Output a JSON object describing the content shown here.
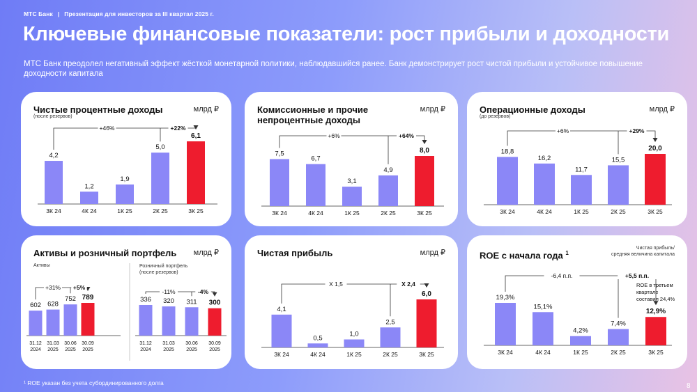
{
  "header": {
    "brand": "МТС Банк",
    "separator": "|",
    "context": "Презентация для инвесторов за III квартал 2025 г."
  },
  "title": "Ключевые финансовые показатели: рост прибыли и доходности",
  "subtitle": "МТС Банк преодолел негативный эффект жёсткой монетарной политики, наблюдавшийся ранее. Банк демонстрирует рост чистой прибыли и устойчивое повышение доходности капитала",
  "footnote": "¹ ROE указан без учета субординированного долга",
  "page_number": "8",
  "colors": {
    "bar": "#8b87f7",
    "highlight": "#ee1c2e",
    "background_start": "#6f7cf6",
    "background_end": "#e9c2e4"
  },
  "cards": {
    "nii": {
      "title": "Чистые процентные доходы",
      "sub": "(после резервов)",
      "unit": "млрд ₽"
    },
    "fee": {
      "title_line1": "Комиссионные и прочие",
      "title_line2": "непроцентные доходы",
      "unit": "млрд ₽"
    },
    "opinc": {
      "title": "Операционные доходы",
      "sub": "(до резервов)",
      "unit": "млрд ₽"
    },
    "assets": {
      "title": "Активы и розничный портфель",
      "unit": "млрд ₽",
      "left_label": "Активы",
      "right_label_line1": "Розничный портфель",
      "right_label_line2": "(после резервов)"
    },
    "profit": {
      "title": "Чистая прибыль",
      "unit": "млрд ₽"
    },
    "roe": {
      "title": "ROE с начала года",
      "sup": "1",
      "unit_line1": "Чистая прибыль/",
      "unit_line2": "средняя величина капитала",
      "note_line1": "ROE в третьем",
      "note_line2": "квартале",
      "note_line3": "составил 24,4%"
    }
  },
  "chart_data": [
    {
      "id": "nii",
      "type": "bar",
      "title": "Чистые процентные доходы",
      "categories": [
        "3К 24",
        "4К 24",
        "1К 25",
        "2К 25",
        "3К 25"
      ],
      "values": [
        4.2,
        1.2,
        1.9,
        5.0,
        6.1
      ],
      "labels": [
        "4,2",
        "1,2",
        "1,9",
        "5,0",
        "6,1"
      ],
      "highlight_index": 4,
      "ylim": [
        0,
        6.1
      ],
      "annotations": {
        "long": "+46%",
        "short": "+22%"
      }
    },
    {
      "id": "fee",
      "type": "bar",
      "title": "Комиссионные и прочие непроцентные доходы",
      "categories": [
        "3К 24",
        "4К 24",
        "1К 25",
        "2К 25",
        "3К 25"
      ],
      "values": [
        7.5,
        6.7,
        3.1,
        4.9,
        8.0
      ],
      "labels": [
        "7,5",
        "6,7",
        "3,1",
        "4,9",
        "8,0"
      ],
      "highlight_index": 4,
      "ylim": [
        0,
        8.0
      ],
      "annotations": {
        "long": "+6%",
        "short": "+64%"
      }
    },
    {
      "id": "opinc",
      "type": "bar",
      "title": "Операционные доходы",
      "categories": [
        "3К 24",
        "4К 24",
        "1К 25",
        "2К 25",
        "3К 25"
      ],
      "values": [
        18.8,
        16.2,
        11.7,
        15.5,
        20.0
      ],
      "labels": [
        "18,8",
        "16,2",
        "11,7",
        "15,5",
        "20,0"
      ],
      "highlight_index": 4,
      "ylim": [
        0,
        20.0
      ],
      "annotations": {
        "long": "+6%",
        "short": "+29%"
      }
    },
    {
      "id": "assets",
      "type": "bar",
      "title": "Активы",
      "categories": [
        "31.12\n2024",
        "31.03\n2025",
        "30.06\n2025",
        "30.09\n2025"
      ],
      "values": [
        602,
        628,
        752,
        789
      ],
      "labels": [
        "602",
        "628",
        "752",
        "789"
      ],
      "highlight_index": 3,
      "ylim": [
        0,
        789
      ],
      "annotations": {
        "long": "+31%",
        "short": "+5%"
      }
    },
    {
      "id": "retail",
      "type": "bar",
      "title": "Розничный портфель",
      "categories": [
        "31.12\n2024",
        "31.03\n2025",
        "30.06\n2025",
        "30.09\n2025"
      ],
      "values": [
        336,
        320,
        311,
        300
      ],
      "labels": [
        "336",
        "320",
        "311",
        "300"
      ],
      "highlight_index": 3,
      "ylim": [
        0,
        336
      ],
      "annotations": {
        "long": "-11%",
        "short": "-4%"
      }
    },
    {
      "id": "profit",
      "type": "bar",
      "title": "Чистая прибыль",
      "categories": [
        "3К 24",
        "4К 24",
        "1К 25",
        "2К 25",
        "3К 25"
      ],
      "values": [
        4.1,
        0.5,
        1.0,
        2.5,
        6.0
      ],
      "labels": [
        "4,1",
        "0,5",
        "1,0",
        "2,5",
        "6,0"
      ],
      "highlight_index": 4,
      "ylim": [
        0,
        6.0
      ],
      "annotations": {
        "long": "X 1,5",
        "short": "X 2,4"
      }
    },
    {
      "id": "roe",
      "type": "bar",
      "title": "ROE с начала года",
      "categories": [
        "3К 24",
        "4К 24",
        "1К 25",
        "2К 25",
        "3К 25"
      ],
      "values": [
        19.3,
        15.1,
        4.2,
        7.4,
        12.9
      ],
      "labels": [
        "19,3%",
        "15,1%",
        "4,2%",
        "7,4%",
        "12,9%"
      ],
      "highlight_index": 4,
      "ylim": [
        0,
        19.3
      ],
      "annotations": {
        "long": "-6,4 п.п.",
        "short": "+5,5 п.п."
      }
    }
  ]
}
